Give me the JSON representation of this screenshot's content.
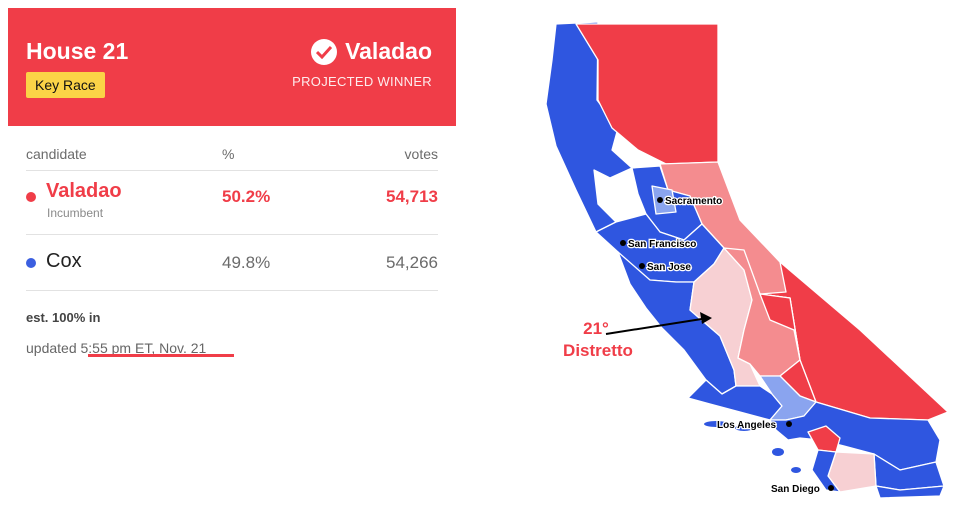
{
  "card": {
    "race_title": "House 21",
    "key_race_badge": "Key Race",
    "winner_name": "Valadao",
    "winner_status": "PROJECTED WINNER",
    "columns": {
      "candidate": "candidate",
      "percent": "%",
      "votes": "votes"
    },
    "candidates": [
      {
        "name": "Valadao",
        "sub": "Incumbent",
        "percent": "50.2%",
        "votes": "54,713",
        "dot_color": "#f03d48"
      },
      {
        "name": "Cox",
        "sub": "",
        "percent": "49.8%",
        "votes": "54,266",
        "dot_color": "#3b5fe0"
      }
    ],
    "reporting": "est. 100% in",
    "updated_prefix": "updated",
    "updated_time": "5:55 pm ET, Nov. 21"
  },
  "map": {
    "cities": [
      "Sacramento",
      "San Francisco",
      "San Jose",
      "Los Angeles",
      "San Diego"
    ],
    "district_label_line1": "21°",
    "district_label_line2": "Distretto",
    "colors": {
      "dem": "#2f56e0",
      "rep": "#f03d48",
      "lean_rep": "#f48c8f",
      "lean_dem": "#8aa4ef",
      "highlight": "#f7d0d3"
    }
  }
}
